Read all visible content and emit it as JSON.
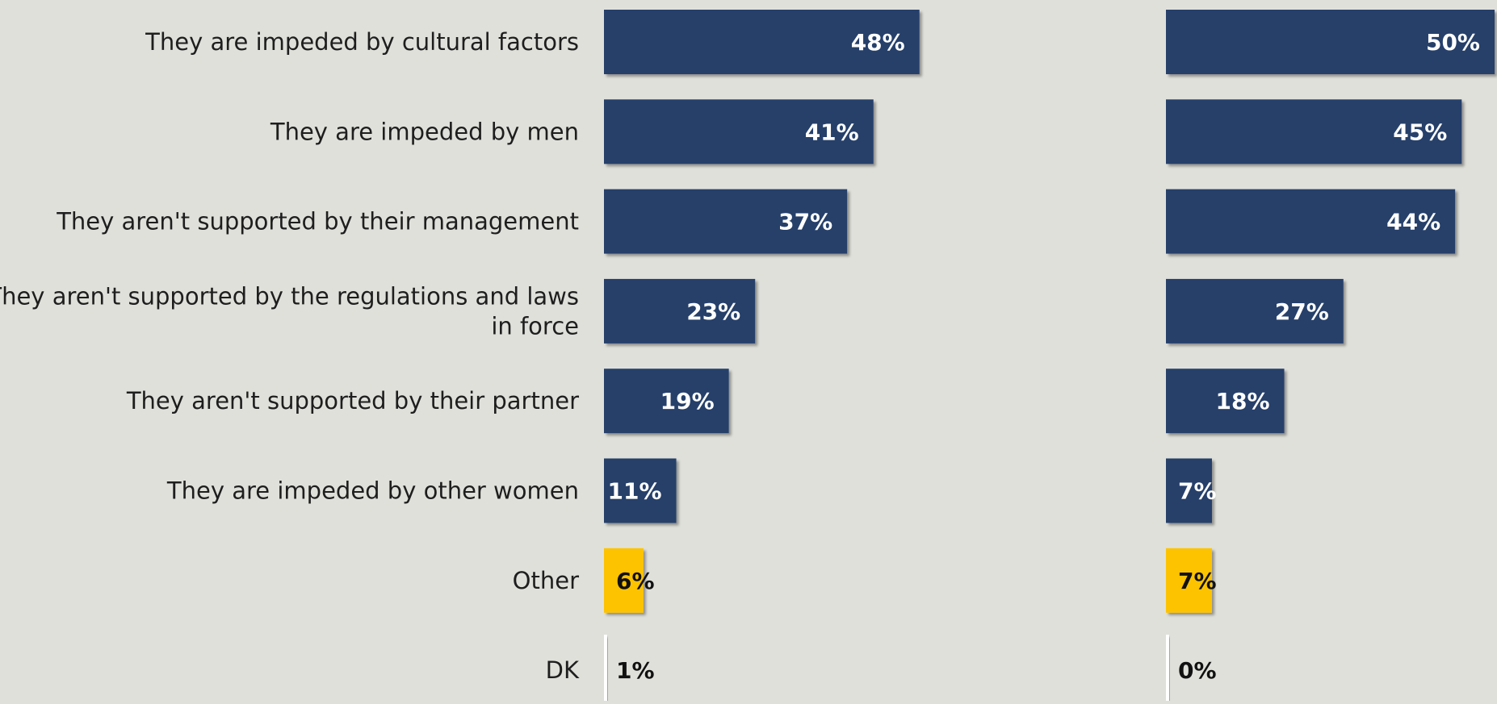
{
  "colors": {
    "background": "#e0e0db",
    "bar_main": "#26416b",
    "bar_other": "#fdc300",
    "bar_dk": "#ffffff",
    "label_on_dark": "#ffffff",
    "label_on_light": "#111111"
  },
  "chart_data": [
    {
      "type": "bar",
      "orientation": "horizontal",
      "title": "",
      "xlabel": "",
      "ylabel": "",
      "xlim": [
        0,
        50
      ],
      "grid": false,
      "categories": [
        "They are impeded by cultural factors",
        "They are impeded by men",
        "They aren't supported by their management",
        "They aren't supported by the regulations and laws in force",
        "They aren't supported by their partner",
        "They are impeded by other women",
        "Other",
        "DK"
      ],
      "category_label_lines": [
        [
          "They are impeded by cultural factors"
        ],
        [
          "They are impeded by men"
        ],
        [
          "They aren't supported by their management"
        ],
        [
          "They aren't supported by the regulations and laws",
          "in force"
        ],
        [
          "They aren't supported by their partner"
        ],
        [
          "They are impeded by other women"
        ],
        [
          "Other"
        ],
        [
          "DK"
        ]
      ],
      "values": [
        48,
        41,
        37,
        23,
        19,
        11,
        6,
        1
      ],
      "value_labels": [
        "48%",
        "41%",
        "37%",
        "23%",
        "19%",
        "11%",
        "6%",
        "1%"
      ]
    },
    {
      "type": "bar",
      "orientation": "horizontal",
      "title": "",
      "xlabel": "",
      "ylabel": "",
      "xlim": [
        0,
        50
      ],
      "grid": false,
      "categories": [
        "They are impeded by cultural factors",
        "They are impeded by men",
        "They aren't supported by their management",
        "They aren't supported by the regulations and laws in force",
        "They aren't supported by their partner",
        "They are impeded by other women",
        "Other",
        "DK"
      ],
      "values": [
        50,
        45,
        44,
        27,
        18,
        7,
        7,
        0
      ],
      "value_labels": [
        "50%",
        "45%",
        "44%",
        "27%",
        "18%",
        "7%",
        "7%",
        "0%"
      ]
    }
  ]
}
